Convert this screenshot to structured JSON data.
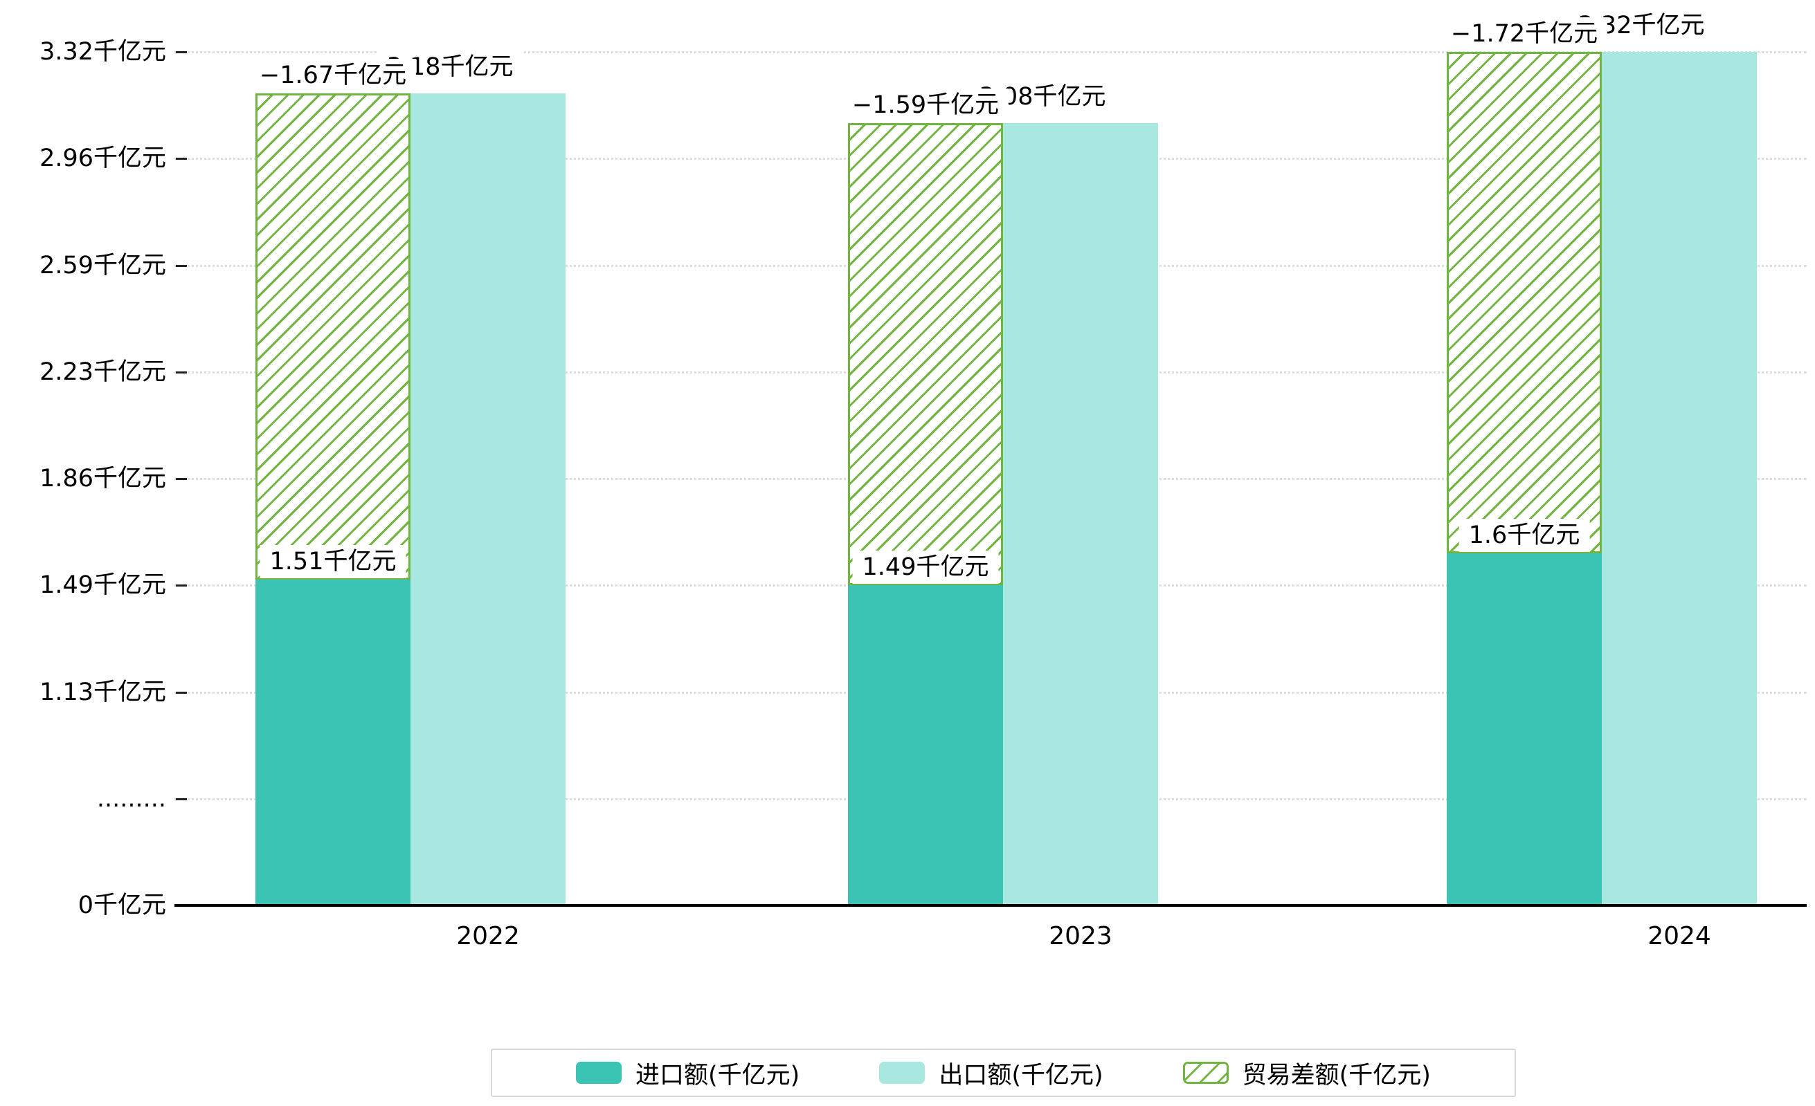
{
  "chart_data": {
    "type": "bar",
    "title": "",
    "xlabel": "",
    "ylabel": "",
    "categories": [
      "2022",
      "2023",
      "2024"
    ],
    "series": [
      {
        "name": "进口额(千亿元)",
        "key": "import",
        "values": [
          1.51,
          1.49,
          1.6
        ],
        "color": "#3BC3B4",
        "style": "solid"
      },
      {
        "name": "出口额(千亿元)",
        "key": "export",
        "values": [
          3.18,
          3.08,
          3.32
        ],
        "color": "#A8E8E1",
        "style": "solid"
      },
      {
        "name": "贸易差额(千亿元)",
        "key": "balance",
        "values": [
          -1.67,
          -1.59,
          -1.72
        ],
        "color": "#6FB53F",
        "style": "hatched"
      }
    ],
    "bar_labels": {
      "import": [
        "1.51千亿元",
        "1.49千亿元",
        "1.6千亿元"
      ],
      "export": [
        "3.18千亿元",
        "3.08千亿元",
        "3.32千亿元"
      ],
      "balance": [
        "−1.67千亿元",
        "−1.59千亿元",
        "−1.72千亿元"
      ]
    },
    "balance_bar_note": "hatched bar spans from import top to export top (stacked)",
    "y_axis": {
      "tick_labels": [
        "0千亿元",
        ".........",
        "1.13千亿元",
        "1.49千亿元",
        "1.86千亿元",
        "2.23千亿元",
        "2.59千亿元",
        "2.96千亿元",
        "3.32千亿元"
      ],
      "tick_values": [
        0,
        0.76,
        1.13,
        1.49,
        1.86,
        2.23,
        2.59,
        2.96,
        3.32
      ],
      "ylim": [
        0,
        3.32
      ],
      "grid": true,
      "grid_style": "dotted",
      "axis_break": true
    },
    "legend": {
      "position": "bottom",
      "items": [
        "进口额(千亿元)",
        "出口额(千亿元)",
        "贸易差额(千亿元)"
      ]
    }
  },
  "colors": {
    "import": "#3BC3B4",
    "export": "#A8E8E1",
    "balance": "#6FB53F",
    "grid": "#DEDEDE",
    "axis": "#000000",
    "text": "#000000",
    "label_bg": "#FFFFFF",
    "legend_border": "#D8D8D8"
  }
}
